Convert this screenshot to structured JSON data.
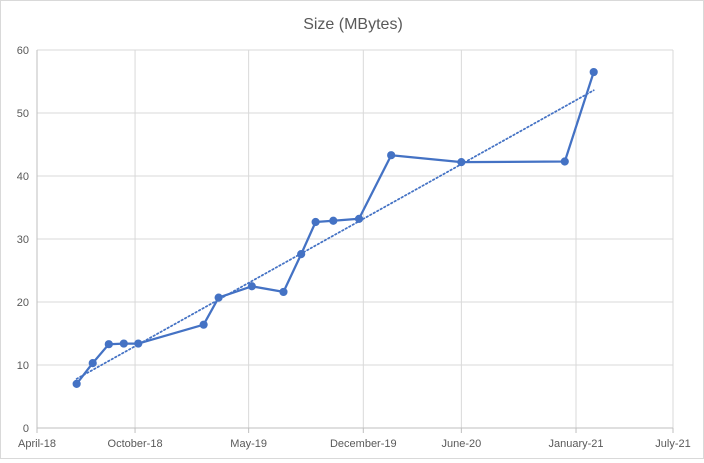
{
  "chart_data": {
    "type": "line",
    "title": "Size (MBytes)",
    "xlabel": "",
    "ylabel": "",
    "ylim": [
      0,
      60
    ],
    "yticks": [
      0,
      10,
      20,
      30,
      40,
      50,
      60
    ],
    "xlim": [
      "2018-04-01",
      "2021-07-01"
    ],
    "xticks": [
      {
        "date": "2018-04-01",
        "label": "April-18"
      },
      {
        "date": "2018-10-01",
        "label": "October-18"
      },
      {
        "date": "2019-05-01",
        "label": "May-19"
      },
      {
        "date": "2019-12-01",
        "label": "December-19"
      },
      {
        "date": "2020-06-01",
        "label": "June-20"
      },
      {
        "date": "2021-01-01",
        "label": "January-21"
      },
      {
        "date": "2021-07-01",
        "label": "July-21"
      }
    ],
    "grid": true,
    "legend": "none",
    "series": [
      {
        "color": "#4472c4",
        "marker": "circle",
        "points": [
          {
            "x": "2018-06-14",
            "y": 7.0
          },
          {
            "x": "2018-07-14",
            "y": 10.3
          },
          {
            "x": "2018-08-13",
            "y": 13.3
          },
          {
            "x": "2018-09-10",
            "y": 13.4
          },
          {
            "x": "2018-10-07",
            "y": 13.4
          },
          {
            "x": "2019-02-06",
            "y": 16.4
          },
          {
            "x": "2019-03-06",
            "y": 20.7
          },
          {
            "x": "2019-05-07",
            "y": 22.5
          },
          {
            "x": "2019-07-05",
            "y": 21.6
          },
          {
            "x": "2019-08-07",
            "y": 27.6
          },
          {
            "x": "2019-09-03",
            "y": 32.7
          },
          {
            "x": "2019-10-06",
            "y": 32.9
          },
          {
            "x": "2019-11-23",
            "y": 33.2
          },
          {
            "x": "2020-01-22",
            "y": 43.3
          },
          {
            "x": "2020-06-01",
            "y": 42.2
          },
          {
            "x": "2020-12-11",
            "y": 42.3
          },
          {
            "x": "2021-02-03",
            "y": 56.5
          }
        ]
      }
    ],
    "trendline": {
      "type": "linear",
      "style": "dotted",
      "color": "#4472c4",
      "from": {
        "x": "2018-06-14",
        "y": 7.8
      },
      "to": {
        "x": "2021-02-03",
        "y": 53.6
      }
    }
  }
}
